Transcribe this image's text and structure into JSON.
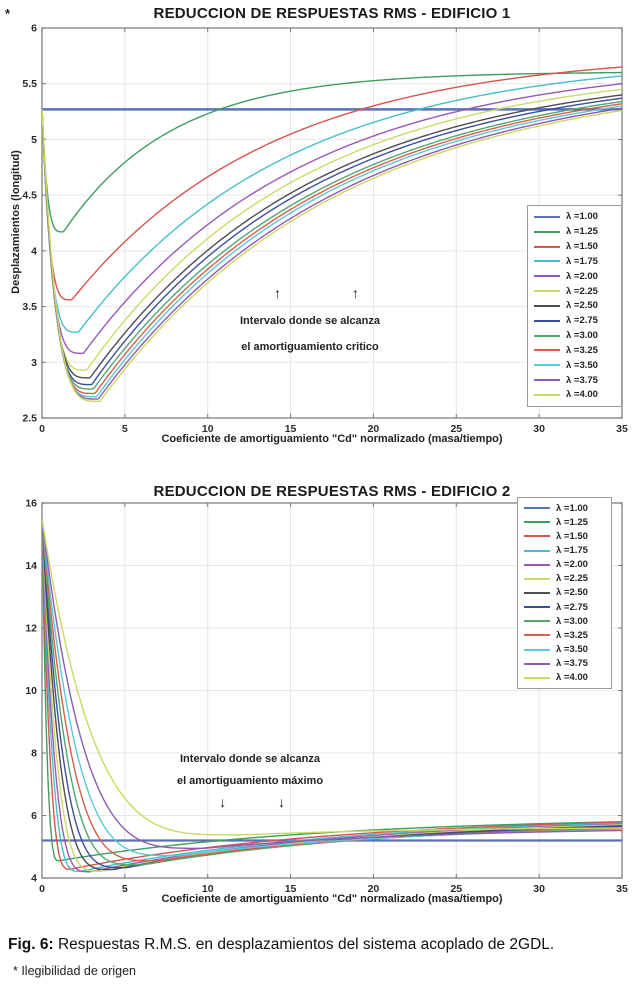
{
  "page_asterisk": "*",
  "caption": {
    "label": "Fig. 6:",
    "text": " Respuestas R.M.S. en desplazamientos del sistema acoplado de 2GDL."
  },
  "footnote": "* Ilegibilidad de origen",
  "chart_data": [
    {
      "type": "line",
      "title": "REDUCCION DE RESPUESTAS RMS - EDIFICIO 1",
      "xlabel": "Coeficiente de amortiguamiento \"Cd\" normalizado (masa/tiempo)",
      "ylabel": "Desplazamientos (longitud)",
      "xlim": [
        0,
        35
      ],
      "ylim": [
        2.5,
        6
      ],
      "xticks": [
        "0",
        "5",
        "10",
        "15",
        "20",
        "25",
        "30",
        "35"
      ],
      "yticks": [
        "2.5",
        "3",
        "3.5",
        "4",
        "4.5",
        "5",
        "5.5",
        "6"
      ],
      "grid": true,
      "legend_position": "right-middle",
      "annotation": {
        "line1": "Intervalo donde se alcanza",
        "line2": "el amortiguamiento critico",
        "arrow_glyph": "↑",
        "arrow_x": [
          14.3,
          19.0
        ]
      },
      "series": [
        {
          "lambda": 1.0,
          "label": "λ =1.00",
          "color": "#5872b5",
          "flat_y": 5.27,
          "width": 2.5
        },
        {
          "lambda": 1.25,
          "label": "λ =1.25",
          "color": "#3f9e5f",
          "start_y": 5.27,
          "min_x": 1.3,
          "min_y": 4.17,
          "end_y": 5.6,
          "drop_pow": 4,
          "rise_tau": 6.5
        },
        {
          "lambda": 1.5,
          "label": "λ =1.50",
          "color": "#d9534f",
          "start_y": 5.27,
          "min_x": 1.8,
          "min_y": 3.56,
          "end_y": 5.65,
          "drop_pow": 4,
          "rise_tau": 12
        },
        {
          "lambda": 1.75,
          "label": "λ =1.75",
          "color": "#46bfc9",
          "start_y": 5.27,
          "min_x": 2.2,
          "min_y": 3.27,
          "end_y": 5.57,
          "drop_pow": 4,
          "rise_tau": 12.5
        },
        {
          "lambda": 2.0,
          "label": "λ =2.00",
          "color": "#9b59b6",
          "start_y": 5.27,
          "min_x": 2.5,
          "min_y": 3.08,
          "end_y": 5.5,
          "drop_pow": 4,
          "rise_tau": 13
        },
        {
          "lambda": 2.25,
          "label": "λ =2.25",
          "color": "#cfd965",
          "start_y": 5.27,
          "min_x": 2.7,
          "min_y": 2.93,
          "end_y": 5.45,
          "drop_pow": 4,
          "rise_tau": 13
        },
        {
          "lambda": 2.5,
          "label": "λ =2.50",
          "color": "#4d4d55",
          "start_y": 5.27,
          "min_x": 2.9,
          "min_y": 2.86,
          "end_y": 5.4,
          "drop_pow": 4,
          "rise_tau": 13.5
        },
        {
          "lambda": 2.75,
          "label": "λ =2.75",
          "color": "#3b4fa0",
          "start_y": 5.27,
          "min_x": 3.0,
          "min_y": 2.8,
          "end_y": 5.37,
          "drop_pow": 4,
          "rise_tau": 13.5
        },
        {
          "lambda": 3.0,
          "label": "λ =3.00",
          "color": "#52a86d",
          "start_y": 5.27,
          "min_x": 3.1,
          "min_y": 2.76,
          "end_y": 5.34,
          "drop_pow": 4,
          "rise_tau": 14
        },
        {
          "lambda": 3.25,
          "label": "λ =3.25",
          "color": "#d6604d",
          "start_y": 5.27,
          "min_x": 3.2,
          "min_y": 2.72,
          "end_y": 5.32,
          "drop_pow": 4,
          "rise_tau": 14
        },
        {
          "lambda": 3.5,
          "label": "λ =3.50",
          "color": "#5ac8d8",
          "start_y": 5.27,
          "min_x": 3.3,
          "min_y": 2.69,
          "end_y": 5.3,
          "drop_pow": 4,
          "rise_tau": 14
        },
        {
          "lambda": 3.75,
          "label": "λ =3.75",
          "color": "#8f5bb0",
          "start_y": 5.27,
          "min_x": 3.4,
          "min_y": 2.67,
          "end_y": 5.28,
          "drop_pow": 4,
          "rise_tau": 14.5
        },
        {
          "lambda": 4.0,
          "label": "λ =4.00",
          "color": "#ccd95e",
          "start_y": 5.27,
          "min_x": 3.5,
          "min_y": 2.65,
          "end_y": 5.26,
          "drop_pow": 4,
          "rise_tau": 14.5
        }
      ]
    },
    {
      "type": "line",
      "title": "REDUCCION DE RESPUESTAS RMS - EDIFICIO 2",
      "xlabel": "Coeficiente de amortiguamiento \"Cd\" normalizado (masa/tiempo)",
      "ylabel": "",
      "xlim": [
        0,
        35
      ],
      "ylim": [
        4,
        16
      ],
      "xticks": [
        "0",
        "5",
        "10",
        "15",
        "20",
        "25",
        "30",
        "35"
      ],
      "yticks": [
        "4",
        "6",
        "8",
        "10",
        "12",
        "14",
        "16"
      ],
      "grid": true,
      "legend_position": "top-right",
      "annotation": {
        "line1": "Intervalo donde se alcanza",
        "line2": "el amortiguamiento máximo",
        "arrow_glyph": "↓",
        "arrow_x": [
          11.0,
          14.55
        ]
      },
      "series": [
        {
          "lambda": 1.0,
          "label": "λ =1.00",
          "color": "#5872b5",
          "flat_y": 5.2,
          "width": 2.3
        },
        {
          "lambda": 1.25,
          "label": "λ =1.25",
          "color": "#3f9e5f",
          "start_y": 15.5,
          "min_x": 1.0,
          "min_y": 4.55,
          "end_y": 5.8,
          "drop_pow": 3.2,
          "rise_tau": 16
        },
        {
          "lambda": 1.5,
          "label": "λ =1.50",
          "color": "#d9534f",
          "start_y": 15.5,
          "min_x": 1.7,
          "min_y": 4.28,
          "end_y": 5.78,
          "drop_pow": 3.4,
          "rise_tau": 16
        },
        {
          "lambda": 1.75,
          "label": "λ =1.75",
          "color": "#46bfc9",
          "start_y": 15.5,
          "min_x": 2.3,
          "min_y": 4.21,
          "end_y": 5.75,
          "drop_pow": 3.6,
          "rise_tau": 16
        },
        {
          "lambda": 2.0,
          "label": "λ =2.00",
          "color": "#9b59b6",
          "start_y": 15.5,
          "min_x": 2.9,
          "min_y": 4.2,
          "end_y": 5.72,
          "drop_pow": 3.8,
          "rise_tau": 16
        },
        {
          "lambda": 2.25,
          "label": "λ =2.25",
          "color": "#cfd965",
          "start_y": 15.5,
          "min_x": 3.6,
          "min_y": 4.22,
          "end_y": 5.7,
          "drop_pow": 4,
          "rise_tau": 16
        },
        {
          "lambda": 2.5,
          "label": "λ =2.50",
          "color": "#4d4d55",
          "start_y": 15.5,
          "min_x": 4.3,
          "min_y": 4.27,
          "end_y": 5.67,
          "drop_pow": 4,
          "rise_tau": 16
        },
        {
          "lambda": 2.75,
          "label": "λ =2.75",
          "color": "#3b4fa0",
          "start_y": 15.5,
          "min_x": 5.1,
          "min_y": 4.33,
          "end_y": 5.64,
          "drop_pow": 4,
          "rise_tau": 16
        },
        {
          "lambda": 3.0,
          "label": "λ =3.00",
          "color": "#52a86d",
          "start_y": 15.5,
          "min_x": 6.0,
          "min_y": 4.42,
          "end_y": 5.61,
          "drop_pow": 4,
          "rise_tau": 16
        },
        {
          "lambda": 3.25,
          "label": "λ =3.25",
          "color": "#d6604d",
          "start_y": 15.5,
          "min_x": 7.0,
          "min_y": 4.55,
          "end_y": 5.58,
          "drop_pow": 4,
          "rise_tau": 15
        },
        {
          "lambda": 3.5,
          "label": "λ =3.50",
          "color": "#5ac8d8",
          "start_y": 15.5,
          "min_x": 8.2,
          "min_y": 4.72,
          "end_y": 5.55,
          "drop_pow": 4,
          "rise_tau": 15
        },
        {
          "lambda": 3.75,
          "label": "λ =3.75",
          "color": "#8f5bb0",
          "start_y": 15.5,
          "min_x": 9.8,
          "min_y": 4.95,
          "end_y": 5.52,
          "drop_pow": 4,
          "rise_tau": 14
        },
        {
          "lambda": 4.0,
          "label": "λ =4.00",
          "color": "#ccd95e",
          "start_y": 15.5,
          "min_x": 12.0,
          "min_y": 5.38,
          "end_y": 5.6,
          "drop_pow": 4,
          "rise_tau": 12
        }
      ]
    }
  ]
}
